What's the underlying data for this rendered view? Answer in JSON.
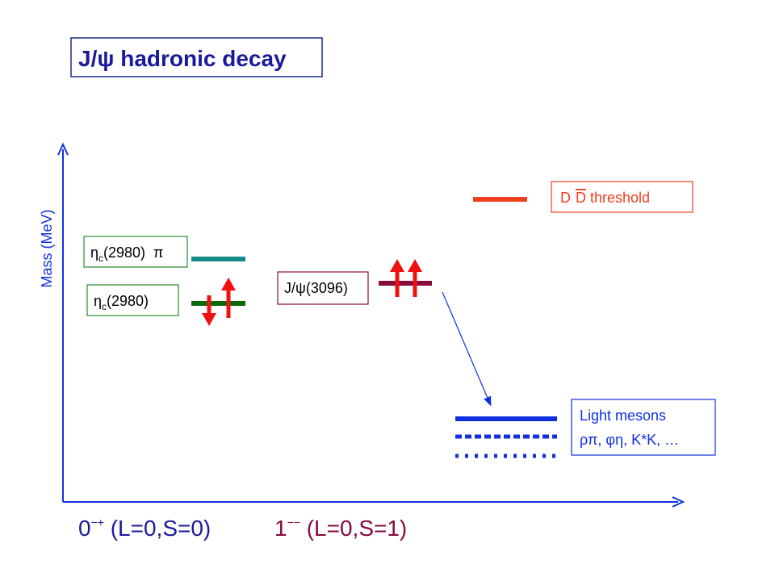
{
  "title": "J/ψ hadronic decay",
  "y_axis_label": "Mass (MeV)",
  "x_labels": [
    {
      "base": "0",
      "sup": "−+",
      "rest": " (L=0,S=0)"
    },
    {
      "base": "1",
      "sup": "−−",
      "rest": " (L=0,S=1)"
    }
  ],
  "boxes": {
    "eta_c_pi": {
      "symbol": "η",
      "sub": "c",
      "mass": "(2980)",
      "extra": "π"
    },
    "eta_c": {
      "symbol": "η",
      "sub": "c",
      "mass": "(2980)"
    },
    "jpsi": {
      "prefix": "J/",
      "symbol": "ψ",
      "mass": "(3096)"
    },
    "dd": {
      "d1": "D",
      "d2": "D",
      "text": " threshold"
    },
    "light": {
      "line1": "Light mesons",
      "line2": "ρπ, φη, K*K, …"
    }
  }
}
